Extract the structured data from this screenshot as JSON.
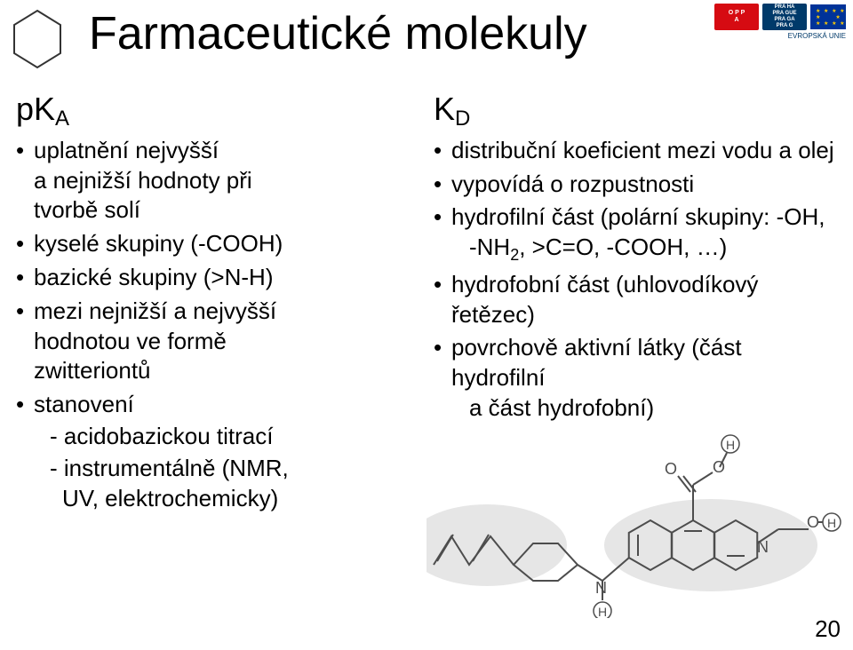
{
  "title": "Farmaceutické molekuly",
  "page_number": "20",
  "left": {
    "heading_main": "pK",
    "heading_sub": "A",
    "b1_l1": "uplatnění nejvyšší",
    "b1_l2": "a nejnižší hodnoty při",
    "b1_l3": "tvorbě solí",
    "b2": "kyselé skupiny (-COOH)",
    "b3": "bazické skupiny (>N-H)",
    "b4_l1": "mezi nejnižší a nejvyšší",
    "b4_l2": "hodnotou ve formě",
    "b4_l3": "zwitteriontů",
    "b5": "stanovení",
    "b5_s1": "- acidobazickou titrací",
    "b5_s2_l1": "- instrumentálně (NMR,",
    "b5_s2_l2": "UV, elektrochemicky)"
  },
  "right": {
    "heading_main": "K",
    "heading_sub": "D",
    "b1": "distribuční koeficient mezi vodu a olej",
    "b2": "vypovídá o rozpustnosti",
    "b3_l1": "hydrofilní část (polární skupiny: -OH,",
    "b3_l2": "-NH",
    "b3_l2_sub": "2",
    "b3_l2_rest": ", >C=O, -COOH, …)",
    "b4": "hydrofobní část (uhlovodíkový řetězec)",
    "b5_l1": "povrchově aktivní látky (část hydrofilní",
    "b5_l2": "a část hydrofobní)"
  },
  "logos": {
    "opp_t1": "O P P",
    "opp_t2": "A",
    "pr_t1": "PRA HA",
    "pr_t2": "PRA GUE",
    "pr_t3": "PRA GA",
    "pr_t4": "PRA G",
    "eu_caption": "EVROPSKÁ UNIE"
  },
  "mol": {
    "blob_fill": "#e6e6e6",
    "line_color": "#4d4d4d",
    "line_width": 2,
    "label_color": "#4d4d4d",
    "N1": "N",
    "N2": "N",
    "H1": "H",
    "H2": "H",
    "H3": "H",
    "O1": "O",
    "O2": "O",
    "O3": "O"
  }
}
